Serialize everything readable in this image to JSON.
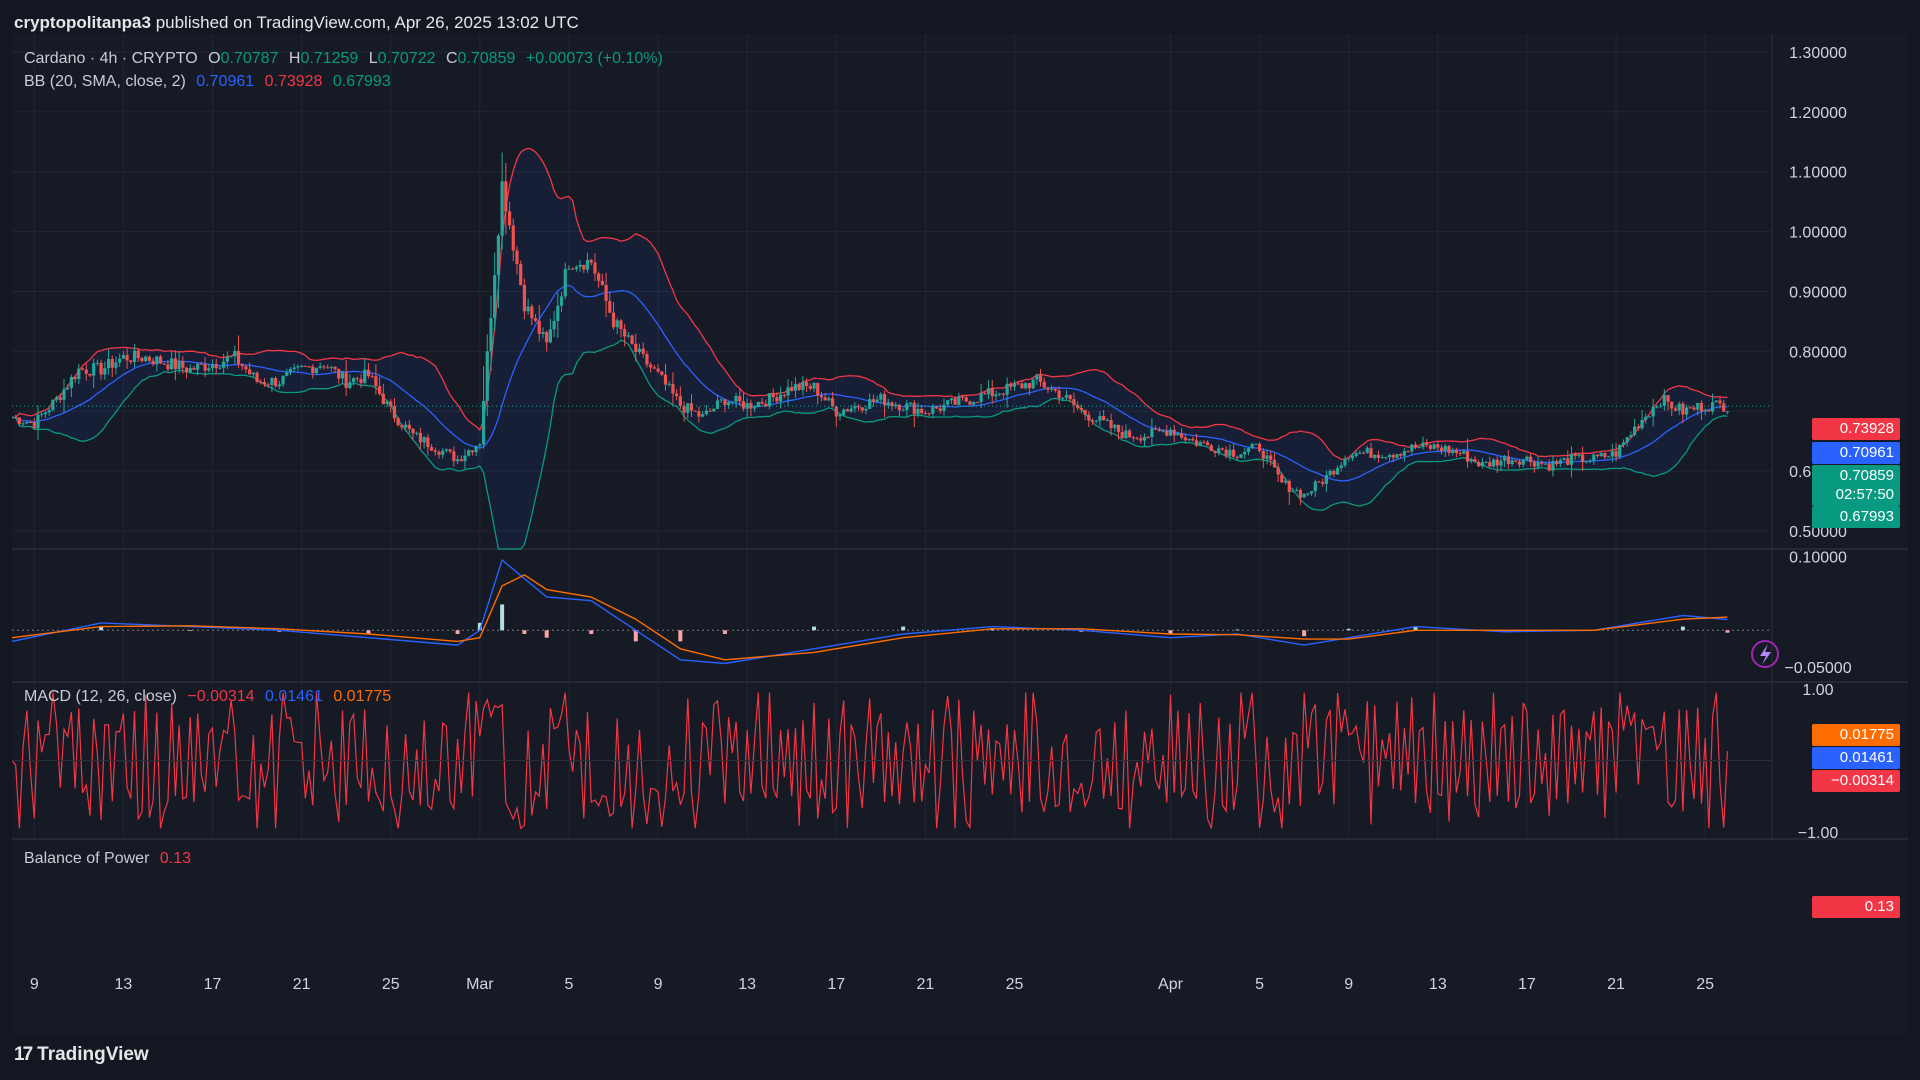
{
  "header": {
    "author": "cryptopolitanpa3",
    "published_text": " published on TradingView.com, Apr 26, 2025 13:02 UTC"
  },
  "colors": {
    "bg": "#161a25",
    "grid": "#222633",
    "up": "#26a69a",
    "down": "#ef5350",
    "bb_upper": "#f23645",
    "bb_basis": "#2962ff",
    "bb_lower": "#089981",
    "macd": "#2962ff",
    "signal": "#ff6d00",
    "bop": "#f23645"
  },
  "legend": {
    "symbol": "Cardano · 4h · CRYPTO",
    "o_label": "O",
    "o": "0.70787",
    "h_label": "H",
    "h": "0.71259",
    "l_label": "L",
    "l": "0.70722",
    "c_label": "C",
    "c": "0.70859",
    "change": "+0.00073 (+0.10%)",
    "bb_label": "BB (20, SMA, close, 2)",
    "bb_basis": "0.70961",
    "bb_upper": "0.73928",
    "bb_lower": "0.67993",
    "macd_label": "MACD (12, 26, close)",
    "macd_hist": "−0.00314",
    "macd_line": "0.01461",
    "macd_signal": "0.01775",
    "bop_label": "Balance of Power",
    "bop_value": "0.13"
  },
  "price_labels": {
    "upper": "0.73928",
    "basis": "0.70961",
    "close": "0.70859",
    "countdown": "02:57:50",
    "lower": "0.67993"
  },
  "macd_labels": {
    "signal": "0.01775",
    "macd": "0.01461",
    "hist": "−0.00314"
  },
  "bop_label_value": "0.13",
  "chart_data": {
    "type": "candlestick",
    "title": "Cardano · 4h · CRYPTO",
    "price_axis": {
      "ticks": [
        "1.30000",
        "1.20000",
        "1.10000",
        "1.00000",
        "0.90000",
        "0.80000",
        "0.60000",
        "0.50000"
      ],
      "tick_values": [
        1.3,
        1.2,
        1.1,
        1.0,
        0.9,
        0.8,
        0.6,
        0.5
      ],
      "range": [
        0.47,
        1.33
      ]
    },
    "macd_axis": {
      "ticks": [
        "0.10000",
        "−0.05000"
      ],
      "tick_values": [
        0.1,
        -0.05
      ],
      "range": [
        -0.07,
        0.11
      ]
    },
    "bop_axis": {
      "ticks": [
        "1.00",
        "−1.00"
      ],
      "tick_values": [
        1,
        -1
      ],
      "range": [
        -1.1,
        1.1
      ]
    },
    "time_axis": {
      "labels": [
        "9",
        "13",
        "17",
        "21",
        "25",
        "Mar",
        "5",
        "9",
        "13",
        "17",
        "21",
        "25",
        "Apr",
        "5",
        "9",
        "13",
        "17",
        "21",
        "25"
      ],
      "dates": [
        "2025-02-09",
        "2025-02-13",
        "2025-02-17",
        "2025-02-21",
        "2025-02-25",
        "2025-03-01",
        "2025-03-05",
        "2025-03-09",
        "2025-03-13",
        "2025-03-17",
        "2025-03-21",
        "2025-03-25",
        "2025-04-01",
        "2025-04-05",
        "2025-04-09",
        "2025-04-13",
        "2025-04-17",
        "2025-04-21",
        "2025-04-25"
      ],
      "range": [
        "2025-02-08",
        "2025-04-28"
      ]
    },
    "close_series": {
      "dates": [
        "2025-02-08",
        "2025-02-09",
        "2025-02-10",
        "2025-02-11",
        "2025-02-12",
        "2025-02-13",
        "2025-02-14",
        "2025-02-15",
        "2025-02-16",
        "2025-02-17",
        "2025-02-18",
        "2025-02-19",
        "2025-02-20",
        "2025-02-21",
        "2025-02-22",
        "2025-02-23",
        "2025-02-24",
        "2025-02-25",
        "2025-02-26",
        "2025-02-27",
        "2025-02-28",
        "2025-03-01",
        "2025-03-02",
        "2025-03-03",
        "2025-03-04",
        "2025-03-05",
        "2025-03-06",
        "2025-03-07",
        "2025-03-08",
        "2025-03-09",
        "2025-03-10",
        "2025-03-11",
        "2025-03-12",
        "2025-03-13",
        "2025-03-14",
        "2025-03-15",
        "2025-03-16",
        "2025-03-17",
        "2025-03-18",
        "2025-03-19",
        "2025-03-20",
        "2025-03-21",
        "2025-03-22",
        "2025-03-23",
        "2025-03-24",
        "2025-03-25",
        "2025-03-26",
        "2025-03-27",
        "2025-03-28",
        "2025-03-29",
        "2025-03-30",
        "2025-03-31",
        "2025-04-01",
        "2025-04-02",
        "2025-04-03",
        "2025-04-04",
        "2025-04-05",
        "2025-04-06",
        "2025-04-07",
        "2025-04-08",
        "2025-04-09",
        "2025-04-10",
        "2025-04-11",
        "2025-04-12",
        "2025-04-13",
        "2025-04-14",
        "2025-04-15",
        "2025-04-16",
        "2025-04-17",
        "2025-04-18",
        "2025-04-19",
        "2025-04-20",
        "2025-04-21",
        "2025-04-22",
        "2025-04-23",
        "2025-04-24",
        "2025-04-25",
        "2025-04-26"
      ],
      "values": [
        0.69,
        0.68,
        0.72,
        0.77,
        0.77,
        0.79,
        0.79,
        0.78,
        0.77,
        0.78,
        0.79,
        0.75,
        0.75,
        0.77,
        0.78,
        0.75,
        0.76,
        0.7,
        0.66,
        0.64,
        0.62,
        0.65,
        1.08,
        0.88,
        0.81,
        0.95,
        0.95,
        0.85,
        0.8,
        0.76,
        0.71,
        0.69,
        0.72,
        0.71,
        0.72,
        0.74,
        0.74,
        0.7,
        0.71,
        0.72,
        0.71,
        0.7,
        0.71,
        0.72,
        0.73,
        0.74,
        0.75,
        0.73,
        0.7,
        0.68,
        0.66,
        0.66,
        0.67,
        0.65,
        0.64,
        0.63,
        0.64,
        0.58,
        0.56,
        0.59,
        0.63,
        0.63,
        0.63,
        0.64,
        0.64,
        0.63,
        0.61,
        0.62,
        0.62,
        0.61,
        0.62,
        0.62,
        0.63,
        0.68,
        0.72,
        0.7,
        0.71,
        0.71
      ]
    },
    "macd_series": {
      "dates": [
        "2025-02-08",
        "2025-02-12",
        "2025-02-16",
        "2025-02-20",
        "2025-02-24",
        "2025-02-28",
        "2025-03-01",
        "2025-03-02",
        "2025-03-03",
        "2025-03-04",
        "2025-03-06",
        "2025-03-08",
        "2025-03-10",
        "2025-03-12",
        "2025-03-16",
        "2025-03-20",
        "2025-03-24",
        "2025-03-28",
        "2025-04-01",
        "2025-04-04",
        "2025-04-07",
        "2025-04-09",
        "2025-04-12",
        "2025-04-16",
        "2025-04-20",
        "2025-04-24",
        "2025-04-26"
      ],
      "macd": [
        -0.015,
        0.01,
        0.005,
        0.0,
        -0.01,
        -0.02,
        0.0,
        0.095,
        0.07,
        0.045,
        0.04,
        0.0,
        -0.04,
        -0.045,
        -0.025,
        -0.005,
        0.005,
        0.0,
        -0.01,
        -0.005,
        -0.02,
        -0.01,
        0.005,
        -0.002,
        0.0,
        0.02,
        0.0146
      ],
      "signal": [
        -0.01,
        0.005,
        0.006,
        0.002,
        -0.005,
        -0.015,
        -0.01,
        0.06,
        0.075,
        0.055,
        0.045,
        0.015,
        -0.025,
        -0.04,
        -0.03,
        -0.01,
        0.002,
        0.002,
        -0.005,
        -0.006,
        -0.012,
        -0.012,
        0.0,
        0.0,
        0.0,
        0.015,
        0.0178
      ]
    },
    "bop_last": 0.13
  }
}
